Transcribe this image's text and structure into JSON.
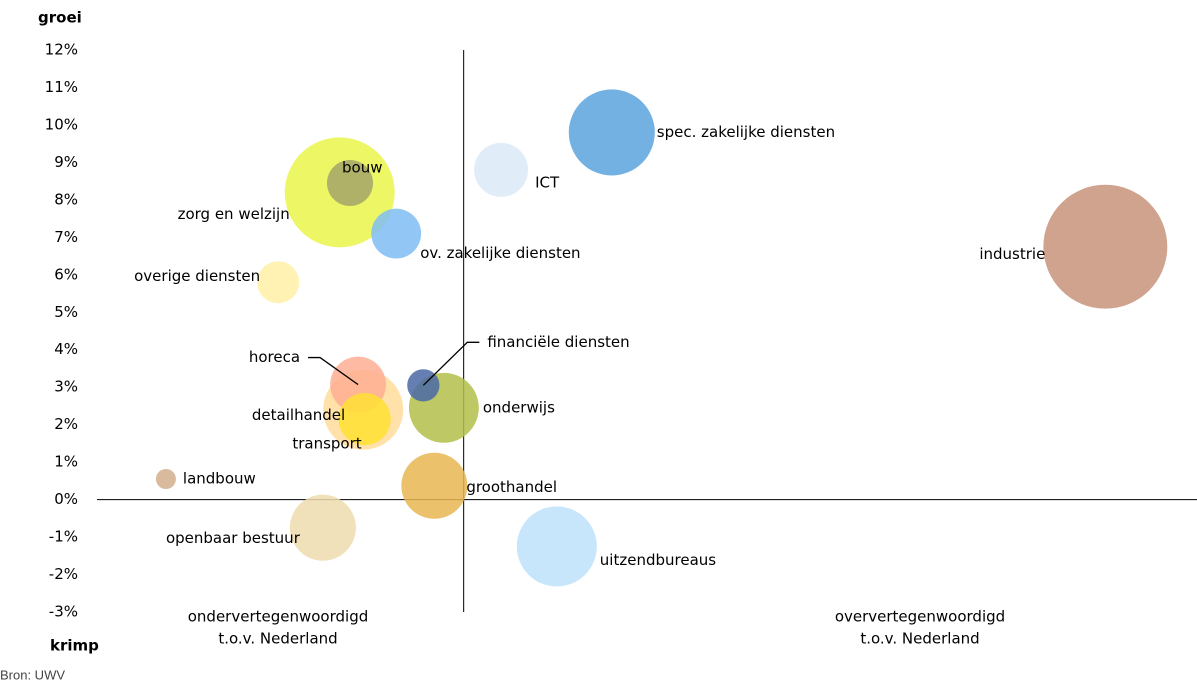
{
  "chart_data": {
    "type": "bubble",
    "y_axis_title": "groei",
    "y_axis_bottom_label": "krimp",
    "annotations": [
      {
        "lines": [
          "ondervertegenwoordigd",
          "t.o.v. Nederland"
        ]
      },
      {
        "lines": [
          "oververtegenwoordigd",
          "t.o.v. Nederland"
        ]
      }
    ],
    "source": "Bron: UWV",
    "xlim": [
      -0.5,
      1.0
    ],
    "ylim": [
      -3,
      12
    ],
    "yticks": [
      {
        "value": 12,
        "label": "12%"
      },
      {
        "value": 11,
        "label": "11%"
      },
      {
        "value": 10,
        "label": "10%"
      },
      {
        "value": 9,
        "label": "9%"
      },
      {
        "value": 8,
        "label": "8%"
      },
      {
        "value": 7,
        "label": "7%"
      },
      {
        "value": 6,
        "label": "6%"
      },
      {
        "value": 5,
        "label": "5%"
      },
      {
        "value": 4,
        "label": "4%"
      },
      {
        "value": 3,
        "label": "3%"
      },
      {
        "value": 2,
        "label": "2%"
      },
      {
        "value": 1,
        "label": "1%"
      },
      {
        "value": 0,
        "label": "0%"
      },
      {
        "value": -1,
        "label": "-1%"
      },
      {
        "value": -2,
        "label": "-2%"
      },
      {
        "value": -3,
        "label": "-3%"
      }
    ],
    "series": [
      {
        "name": "zorg en welzijn",
        "color": "#eaf54a",
        "x": -0.169,
        "y": 8.2,
        "size": 302
      },
      {
        "name": "detailhandel",
        "color": "#ffdc9a",
        "x": -0.137,
        "y": 2.4,
        "size": 160
      },
      {
        "name": "industrie",
        "color": "#c8937a",
        "x": 0.875,
        "y": 6.75,
        "size": 384
      },
      {
        "name": "spec. zakelijke diensten",
        "color": "#5aa3de",
        "x": 0.202,
        "y": 9.8,
        "size": 185
      },
      {
        "name": "uitzendbureaus",
        "color": "#bde0fa",
        "x": 0.127,
        "y": -1.25,
        "size": 160
      },
      {
        "name": "onderwijs",
        "color": "#b3c04a",
        "x": -0.027,
        "y": 2.45,
        "size": 122
      },
      {
        "name": "groothandel",
        "color": "#e8b652",
        "x": -0.04,
        "y": 0.37,
        "size": 109
      },
      {
        "name": "openbaar bestuur",
        "color": "#eedcae",
        "x": -0.192,
        "y": -0.75,
        "size": 109
      },
      {
        "name": "horeca",
        "color": "#ffae94",
        "x": -0.144,
        "y": 3.07,
        "size": 78
      },
      {
        "name": "ICT",
        "color": "#dbeaf7",
        "x": 0.051,
        "y": 8.8,
        "size": 73
      },
      {
        "name": "transport",
        "color": "#ffe033",
        "x": -0.135,
        "y": 2.15,
        "size": 68
      },
      {
        "name": "ov. zakelijke diensten",
        "color": "#7fbdf3",
        "x": -0.092,
        "y": 7.1,
        "size": 62
      },
      {
        "name": "bouw",
        "color": "#a4a46a",
        "x": -0.155,
        "y": 8.45,
        "size": 53
      },
      {
        "name": "overige diensten",
        "color": "#fff0a4",
        "x": -0.253,
        "y": 5.8,
        "size": 44
      },
      {
        "name": "financiële diensten",
        "color": "#4a68a6",
        "x": -0.055,
        "y": 3.05,
        "size": 26
      },
      {
        "name": "landbouw",
        "color": "#d2ae8c",
        "x": -0.406,
        "y": 0.55,
        "size": 10
      }
    ]
  }
}
